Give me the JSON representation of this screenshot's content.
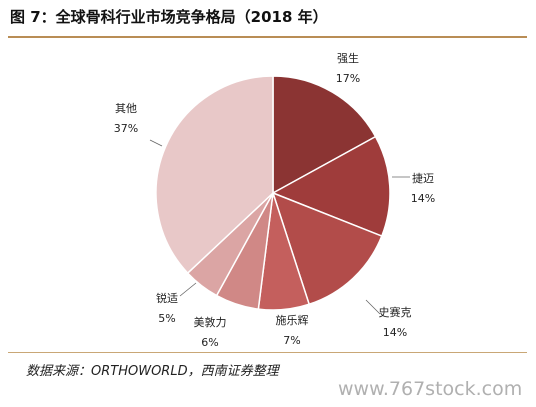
{
  "title": "图 7：全球骨科行业市场竞争格局（2018 年）",
  "source": "数据来源：ORTHOWORLD，西南证券整理",
  "watermark": "www.767stock.com",
  "chart_data": {
    "type": "pie",
    "start_angle_deg": 0,
    "direction": "clockwise",
    "slices": [
      {
        "name": "强生",
        "value": 17,
        "label": "17%",
        "color": "#8b3433"
      },
      {
        "name": "捷迈",
        "value": 14,
        "label": "14%",
        "color": "#9f3c3b"
      },
      {
        "name": "史赛克",
        "value": 14,
        "label": "14%",
        "color": "#b24c4a"
      },
      {
        "name": "施乐辉",
        "value": 7,
        "label": "7%",
        "color": "#c45f5d"
      },
      {
        "name": "美敦力",
        "value": 6,
        "label": "6%",
        "color": "#d08886"
      },
      {
        "name": "锐适",
        "value": 5,
        "label": "5%",
        "color": "#dba5a4"
      },
      {
        "name": "其他",
        "value": 37,
        "label": "37%",
        "color": "#e8c8c8"
      }
    ]
  }
}
